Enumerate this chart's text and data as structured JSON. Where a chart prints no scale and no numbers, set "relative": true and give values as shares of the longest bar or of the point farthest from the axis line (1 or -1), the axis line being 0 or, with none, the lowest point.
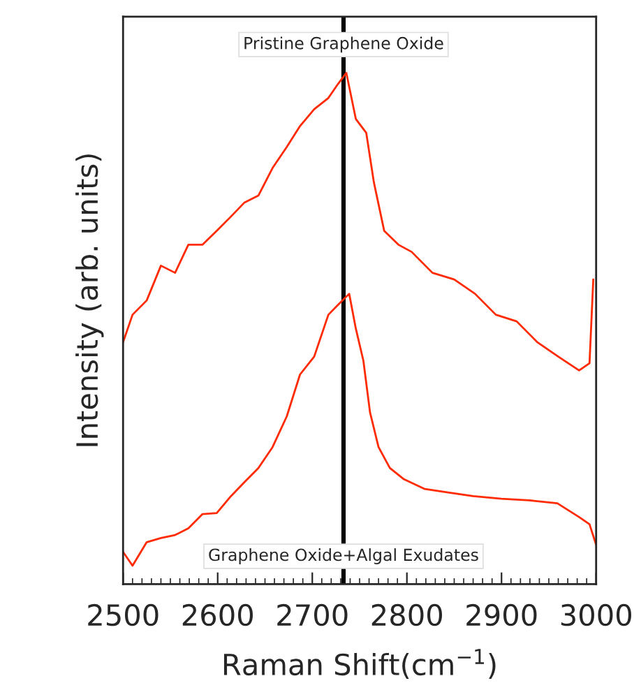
{
  "chart_data": {
    "type": "line",
    "relative": true,
    "xlabel": "Raman Shift(cm$^{−1}$)",
    "ylabel": "Intensity (arb. units)",
    "xlim": [
      2500,
      3000
    ],
    "xticks": [
      2500,
      2600,
      2700,
      2800,
      2900,
      3000
    ],
    "grid": false,
    "legend": false,
    "marker": "none",
    "line_style": "solid",
    "tick_labels": "x",
    "annotations": [
      "Pristine Graphene Oxide",
      "Graphene Oxide+Algal Exudates"
    ],
    "ref_lines": [
      {
        "axis": "x",
        "value": 2733,
        "color": "#000000"
      }
    ],
    "series": [
      {
        "color": "#ff2a00",
        "x": [
          2500,
          2510,
          2525,
          2540,
          2555,
          2569,
          2584,
          2599,
          2614,
          2628,
          2643,
          2658,
          2673,
          2687,
          2702,
          2717,
          2727,
          2736,
          2746,
          2757,
          2765,
          2776,
          2791,
          2805,
          2827,
          2850,
          2872,
          2894,
          2916,
          2938,
          2960,
          2982,
          2993,
          2997
        ],
        "values": [
          0.473,
          0.527,
          0.555,
          0.623,
          0.609,
          0.664,
          0.664,
          0.691,
          0.719,
          0.746,
          0.76,
          0.814,
          0.855,
          0.896,
          0.929,
          0.951,
          0.978,
          1.0,
          0.91,
          0.883,
          0.787,
          0.691,
          0.664,
          0.65,
          0.609,
          0.596,
          0.568,
          0.527,
          0.514,
          0.473,
          0.445,
          0.418,
          0.432,
          0.596
        ]
      },
      {
        "color": "#ff2a00",
        "x": [
          2500,
          2510,
          2525,
          2540,
          2555,
          2569,
          2584,
          2599,
          2614,
          2628,
          2643,
          2658,
          2673,
          2687,
          2702,
          2717,
          2727,
          2739,
          2746,
          2754,
          2761,
          2770,
          2782,
          2797,
          2819,
          2841,
          2870,
          2900,
          2929,
          2959,
          2982,
          2993,
          3000
        ],
        "values": [
          0.063,
          0.036,
          0.082,
          0.09,
          0.096,
          0.109,
          0.137,
          0.139,
          0.172,
          0.199,
          0.227,
          0.268,
          0.328,
          0.41,
          0.445,
          0.527,
          0.546,
          0.568,
          0.5,
          0.437,
          0.336,
          0.268,
          0.227,
          0.205,
          0.186,
          0.18,
          0.172,
          0.167,
          0.164,
          0.158,
          0.131,
          0.117,
          0.077
        ]
      }
    ]
  }
}
